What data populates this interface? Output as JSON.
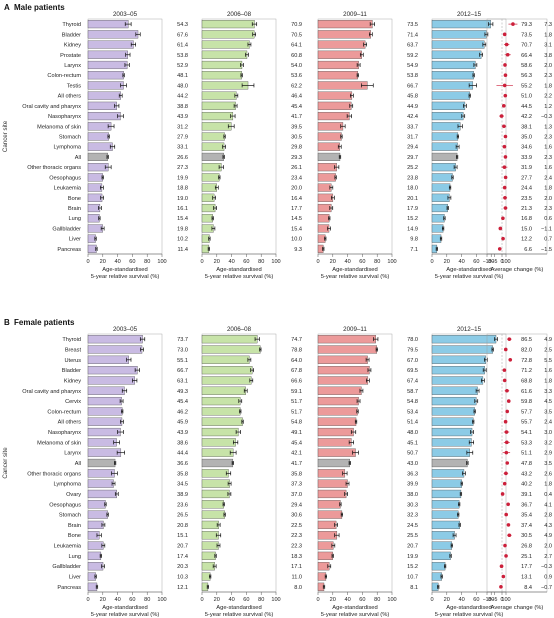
{
  "panels": [
    {
      "letter": "A",
      "title": "Male patients",
      "periods": [
        "2003–05",
        "2006–08",
        "2009–11",
        "2012–15"
      ],
      "change_title": "",
      "sites": [
        "Thyroid",
        "Bladder",
        "Kidney",
        "Prostate",
        "Larynx",
        "Colon-rectum",
        "Testis",
        "All others",
        "Oral cavity and pharynx",
        "Nasopharynx",
        "Melanoma of skin",
        "Stomach",
        "Lymphoma",
        "All",
        "Other thoracic organs",
        "Oesophagus",
        "Leukaemia",
        "Bone",
        "Brain",
        "Lung",
        "Gallbladder",
        "Liver",
        "Pancreas"
      ],
      "all_index": 13,
      "values": [
        [
          54.3,
          67.6,
          61.4,
          53.8,
          52.9,
          48.1,
          48.0,
          44.2,
          38.8,
          43.9,
          31.2,
          27.9,
          33.1,
          26.6,
          27.3,
          19.9,
          18.8,
          19.0,
          16.1,
          15.4,
          19.8,
          10.2,
          11.4
        ],
        [
          70.9,
          70.5,
          64.1,
          60.8,
          54.0,
          53.6,
          62.2,
          46.4,
          45.4,
          41.7,
          39.5,
          30.5,
          29.8,
          29.3,
          26.1,
          23.4,
          20.0,
          16.4,
          17.7,
          14.5,
          15.4,
          10.0,
          9.3
        ],
        [
          73.5,
          71.4,
          63.7,
          59.2,
          54.9,
          53.8,
          66.7,
          45.8,
          44.9,
          42.4,
          33.7,
          31.7,
          29.4,
          29.7,
          25.2,
          23.8,
          18.0,
          20.1,
          17.9,
          15.2,
          14.9,
          9.8,
          7.1
        ],
        [
          79.3,
          73.5,
          70.7,
          66.4,
          58.6,
          56.3,
          55.2,
          51.0,
          44.5,
          42.2,
          38.1,
          35.0,
          34.6,
          33.9,
          31.9,
          27.7,
          24.4,
          23.5,
          21.3,
          16.8,
          15.0,
          12.2,
          6.6
        ]
      ],
      "errors": [
        [
          4,
          3,
          3,
          3,
          3,
          1,
          4,
          2,
          3,
          4,
          4,
          1,
          3,
          1,
          4,
          1,
          2,
          2,
          2,
          1,
          2,
          1,
          1
        ],
        [
          3,
          2,
          2,
          2,
          2,
          1,
          8,
          2,
          2,
          3,
          4,
          1,
          2,
          1,
          3,
          1,
          2,
          2,
          2,
          1,
          2,
          1,
          1
        ],
        [
          3,
          2,
          2,
          2,
          2,
          1,
          8,
          2,
          2,
          3,
          3,
          1,
          2,
          1,
          3,
          1,
          2,
          2,
          2,
          1,
          2,
          1,
          1
        ],
        [
          3,
          2,
          2,
          2,
          2,
          1,
          5,
          1,
          2,
          2,
          3,
          1,
          2,
          1,
          2,
          1,
          1,
          2,
          1,
          1,
          1,
          1,
          1
        ]
      ],
      "change": [
        7.3,
        1.8,
        3.1,
        3.8,
        2.0,
        2.3,
        1.8,
        2.2,
        1.2,
        -0.3,
        1.3,
        2.3,
        1.6,
        2.3,
        1.6,
        2.4,
        1.8,
        2.0,
        2.3,
        0.6,
        -1.1,
        0.7,
        -1.5
      ],
      "change_err": [
        3.0,
        0.5,
        1.8,
        2.0,
        1.0,
        0.6,
        5.5,
        1.0,
        1.2,
        1.6,
        1.5,
        0.7,
        1.2,
        0.5,
        2.0,
        0.8,
        1.2,
        1.4,
        1.3,
        0.6,
        1.2,
        0.7,
        1.0
      ]
    },
    {
      "letter": "B",
      "title": "Female patients",
      "periods": [
        "2003–05",
        "2006–08",
        "2009–11",
        "2012–15"
      ],
      "change_title": "",
      "sites": [
        "Thyroid",
        "Breast",
        "Uterus",
        "Bladder",
        "Kidney",
        "Oral cavity and pharynx",
        "Cervix",
        "Colon-rectum",
        "All others",
        "Nasopharynx",
        "Melanoma of skin",
        "Larynx",
        "All",
        "Other thoracic organs",
        "Lymphoma",
        "Ovary",
        "Oesophagus",
        "Stomach",
        "Brain",
        "Bone",
        "Leukaemia",
        "Lung",
        "Gallbladder",
        "Liver",
        "Pancreas"
      ],
      "all_index": 12,
      "values": [
        [
          73.7,
          73.0,
          55.1,
          66.7,
          63.1,
          49.3,
          45.4,
          46.2,
          45.9,
          43.9,
          38.6,
          44.4,
          36.6,
          35.8,
          34.5,
          38.9,
          23.6,
          26.5,
          20.8,
          15.1,
          20.7,
          17.4,
          20.3,
          10.3,
          12.1
        ],
        [
          74.7,
          78.8,
          64.0,
          67.8,
          66.6,
          59.1,
          51.7,
          51.7,
          54.8,
          49.1,
          45.4,
          42.1,
          41.7,
          35.8,
          37.3,
          37.0,
          29.4,
          30.6,
          22.5,
          22.3,
          22.3,
          18.3,
          17.1,
          11.0,
          8.0
        ],
        [
          78.0,
          79.5,
          67.0,
          69.5,
          67.4,
          58.7,
          54.8,
          53.4,
          51.4,
          48.0,
          45.1,
          50.7,
          43.0,
          36.3,
          39.9,
          38.0,
          30.3,
          32.3,
          24.5,
          25.5,
          20.7,
          19.9,
          15.2,
          10.7,
          8.1
        ],
        [
          86.5,
          82.0,
          72.8,
          71.2,
          68.8,
          61.6,
          59.8,
          57.7,
          55.7,
          54.1,
          53.3,
          51.1,
          47.8,
          43.2,
          40.2,
          39.1,
          36.7,
          35.4,
          37.4,
          30.5,
          26.8,
          25.1,
          17.7,
          13.1,
          8.4
        ]
      ],
      "errors": [
        [
          3,
          2,
          3,
          3,
          3,
          3,
          2,
          1,
          2,
          4,
          4,
          5,
          1,
          4,
          2,
          2,
          1,
          1,
          2,
          3,
          2,
          1,
          2,
          1,
          1
        ],
        [
          3,
          1,
          2,
          2,
          2,
          2,
          2,
          1,
          1,
          3,
          3,
          4,
          1,
          3,
          2,
          2,
          1,
          1,
          2,
          3,
          2,
          1,
          2,
          1,
          1
        ],
        [
          3,
          1,
          2,
          2,
          2,
          2,
          2,
          1,
          1,
          3,
          3,
          4,
          1,
          3,
          2,
          2,
          1,
          1,
          2,
          3,
          2,
          1,
          2,
          1,
          1
        ],
        [
          2,
          1,
          2,
          2,
          2,
          2,
          2,
          1,
          1,
          2,
          3,
          4,
          1,
          2,
          1,
          1,
          1,
          1,
          1,
          2,
          1,
          1,
          1,
          1,
          1
        ]
      ],
      "change": [
        4.9,
        2.5,
        5.5,
        1.6,
        1.8,
        3.3,
        4.5,
        3.5,
        2.4,
        3.0,
        3.2,
        2.9,
        3.5,
        2.6,
        1.8,
        0.4,
        4.1,
        2.8,
        4.3,
        4.9,
        2.0,
        2.7,
        -0.3,
        0.9,
        -0.7
      ],
      "change_err": [
        1.5,
        0.5,
        1.2,
        1.0,
        1.0,
        1.5,
        1.0,
        0.6,
        0.7,
        1.8,
        2.0,
        2.5,
        0.6,
        1.5,
        1.0,
        1.0,
        1.0,
        0.8,
        1.0,
        1.5,
        1.0,
        0.8,
        1.2,
        0.8,
        1.0
      ]
    }
  ],
  "axes": {
    "survival_ticks": [
      "0",
      "20",
      "40",
      "60",
      "80",
      "100"
    ],
    "survival_label_line1": "Age-standardised",
    "survival_label_line2": "5-year relative survival (%)",
    "change_ticks": [
      "−10",
      "−5",
      "0",
      "5",
      "10",
      "15",
      "20",
      "25",
      "30"
    ],
    "change_label": "Average change (%)",
    "cancer_site_label": "Cancer site"
  },
  "colors": {
    "period_fills": [
      "#c9bbe3",
      "#c7e3a8",
      "#ec9a9a",
      "#8ccbe6"
    ],
    "all_fill": "#b3b3b3",
    "change_point": "#cc1f3a",
    "zero_line": "#b0b0b0"
  },
  "chart_data": [
    {
      "type": "bar",
      "title": "Male patients",
      "xlabel": "Age-standardised 5-year relative survival (%)",
      "ylabel": "Cancer site",
      "xlim": [
        0,
        100
      ],
      "categories": [
        "Thyroid",
        "Bladder",
        "Kidney",
        "Prostate",
        "Larynx",
        "Colon-rectum",
        "Testis",
        "All others",
        "Oral cavity and pharynx",
        "Nasopharynx",
        "Melanoma of skin",
        "Stomach",
        "Lymphoma",
        "All",
        "Other thoracic organs",
        "Oesophagus",
        "Leukaemia",
        "Bone",
        "Brain",
        "Lung",
        "Gallbladder",
        "Liver",
        "Pancreas"
      ],
      "series": [
        {
          "name": "2003–05",
          "values": [
            54.3,
            67.6,
            61.4,
            53.8,
            52.9,
            48.1,
            48.0,
            44.2,
            38.8,
            43.9,
            31.2,
            27.9,
            33.1,
            26.6,
            27.3,
            19.9,
            18.8,
            19.0,
            16.1,
            15.4,
            19.8,
            10.2,
            11.4
          ]
        },
        {
          "name": "2006–08",
          "values": [
            70.9,
            70.5,
            64.1,
            60.8,
            54.0,
            53.6,
            62.2,
            46.4,
            45.4,
            41.7,
            39.5,
            30.5,
            29.8,
            29.3,
            26.1,
            23.4,
            20.0,
            16.4,
            17.7,
            14.5,
            15.4,
            10.0,
            9.3
          ]
        },
        {
          "name": "2009–11",
          "values": [
            73.5,
            71.4,
            63.7,
            59.2,
            54.9,
            53.8,
            66.7,
            45.8,
            44.9,
            42.4,
            33.7,
            31.7,
            29.4,
            29.7,
            25.2,
            23.8,
            18.0,
            20.1,
            17.9,
            15.2,
            14.9,
            9.8,
            7.1
          ]
        },
        {
          "name": "2012–15",
          "values": [
            79.3,
            73.5,
            70.7,
            66.4,
            58.6,
            56.3,
            55.2,
            51.0,
            44.5,
            42.2,
            38.1,
            35.0,
            34.6,
            33.9,
            31.9,
            27.7,
            24.4,
            23.5,
            21.3,
            16.8,
            15.0,
            12.2,
            6.6
          ]
        }
      ]
    },
    {
      "type": "scatter",
      "title": "Male patients",
      "xlabel": "Average change (%)",
      "xlim": [
        -10,
        30
      ],
      "categories": [
        "Thyroid",
        "Bladder",
        "Kidney",
        "Prostate",
        "Larynx",
        "Colon-rectum",
        "Testis",
        "All others",
        "Oral cavity and pharynx",
        "Nasopharynx",
        "Melanoma of skin",
        "Stomach",
        "Lymphoma",
        "All",
        "Other thoracic organs",
        "Oesophagus",
        "Leukaemia",
        "Bone",
        "Brain",
        "Lung",
        "Gallbladder",
        "Liver",
        "Pancreas"
      ],
      "values": [
        7.3,
        1.8,
        3.1,
        3.8,
        2.0,
        2.3,
        1.8,
        2.2,
        1.2,
        -0.3,
        1.3,
        2.3,
        1.6,
        2.3,
        1.6,
        2.4,
        1.8,
        2.0,
        2.3,
        0.6,
        -1.1,
        0.7,
        -1.5
      ]
    },
    {
      "type": "bar",
      "title": "Female patients",
      "xlabel": "Age-standardised 5-year relative survival (%)",
      "ylabel": "Cancer site",
      "xlim": [
        0,
        100
      ],
      "categories": [
        "Thyroid",
        "Breast",
        "Uterus",
        "Bladder",
        "Kidney",
        "Oral cavity and pharynx",
        "Cervix",
        "Colon-rectum",
        "All others",
        "Nasopharynx",
        "Melanoma of skin",
        "Larynx",
        "All",
        "Other thoracic organs",
        "Lymphoma",
        "Ovary",
        "Oesophagus",
        "Stomach",
        "Brain",
        "Bone",
        "Leukaemia",
        "Lung",
        "Gallbladder",
        "Liver",
        "Pancreas"
      ],
      "series": [
        {
          "name": "2003–05",
          "values": [
            73.7,
            73.0,
            55.1,
            66.7,
            63.1,
            49.3,
            45.4,
            46.2,
            45.9,
            43.9,
            38.6,
            44.4,
            36.6,
            35.8,
            34.5,
            38.9,
            23.6,
            26.5,
            20.8,
            15.1,
            20.7,
            17.4,
            20.3,
            10.3,
            12.1
          ]
        },
        {
          "name": "2006–08",
          "values": [
            74.7,
            78.8,
            64.0,
            67.8,
            66.6,
            59.1,
            51.7,
            51.7,
            54.8,
            49.1,
            45.4,
            42.1,
            41.7,
            35.8,
            37.3,
            37.0,
            29.4,
            30.6,
            22.5,
            22.3,
            22.3,
            18.3,
            17.1,
            11.0,
            8.0
          ]
        },
        {
          "name": "2009–11",
          "values": [
            78.0,
            79.5,
            67.0,
            69.5,
            67.4,
            58.7,
            54.8,
            53.4,
            51.4,
            48.0,
            45.1,
            50.7,
            43.0,
            36.3,
            39.9,
            38.0,
            30.3,
            32.3,
            24.5,
            25.5,
            20.7,
            19.9,
            15.2,
            10.7,
            8.1
          ]
        },
        {
          "name": "2012–15",
          "values": [
            86.5,
            82.0,
            72.8,
            71.2,
            68.8,
            61.6,
            59.8,
            57.7,
            55.7,
            54.1,
            53.3,
            51.1,
            47.8,
            43.2,
            40.2,
            39.1,
            36.7,
            35.4,
            37.4,
            30.5,
            26.8,
            25.1,
            17.7,
            13.1,
            8.4
          ]
        }
      ]
    },
    {
      "type": "scatter",
      "title": "Female patients",
      "xlabel": "Average change (%)",
      "xlim": [
        -10,
        30
      ],
      "categories": [
        "Thyroid",
        "Breast",
        "Uterus",
        "Bladder",
        "Kidney",
        "Oral cavity and pharynx",
        "Cervix",
        "Colon-rectum",
        "All others",
        "Nasopharynx",
        "Melanoma of skin",
        "Larynx",
        "All",
        "Other thoracic organs",
        "Lymphoma",
        "Ovary",
        "Oesophagus",
        "Stomach",
        "Brain",
        "Bone",
        "Leukaemia",
        "Lung",
        "Gallbladder",
        "Liver",
        "Pancreas"
      ],
      "values": [
        4.9,
        2.5,
        5.5,
        1.6,
        1.8,
        3.3,
        4.5,
        3.5,
        2.4,
        3.0,
        3.2,
        2.9,
        3.5,
        2.6,
        1.8,
        0.4,
        4.1,
        2.8,
        4.3,
        4.9,
        2.0,
        2.7,
        -0.3,
        0.9,
        -0.7
      ]
    }
  ]
}
